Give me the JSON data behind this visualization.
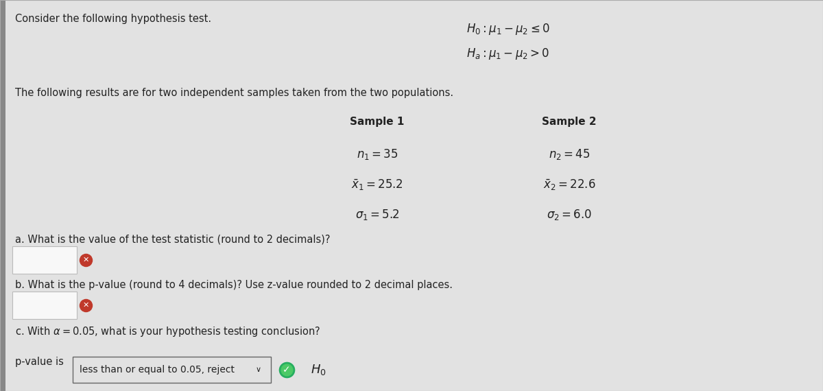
{
  "bg_color": "#d8d8d8",
  "panel_color": "#e2e2e2",
  "title": "Consider the following hypothesis test.",
  "subtitle": "The following results are for two independent samples taken from the two populations.",
  "H0": "$H_0: \\mu_1 - \\mu_2 \\leq 0$",
  "Ha": "$H_a: \\mu_1 - \\mu_2 > 0$",
  "sample1_header": "Sample 1",
  "sample2_header": "Sample 2",
  "sample1_n": "$n_1 = 35$",
  "sample2_n": "$n_2 = 45$",
  "sample1_xbar": "$\\bar{x}_1 = 25.2$",
  "sample2_xbar": "$\\bar{x}_2 = 22.6$",
  "sample1_sigma": "$\\sigma_1 = 5.2$",
  "sample2_sigma": "$\\sigma_2 = 6.0$",
  "question_a": "a. What is the value of the test statistic (round to 2 decimals)?",
  "question_b": "b. What is the p-value (round to 4 decimals)? Use z-value rounded to 2 decimal places.",
  "question_c": "c. With $\\alpha = 0.05$, what is your hypothesis testing conclusion?",
  "conclusion_label": "p-value is",
  "conclusion_dropdown": "less than or equal to 0.05, reject",
  "conclusion_end": "$H_0$",
  "check_icon_color": "#27ae60",
  "x_icon_color": "#c0392b",
  "border_color": "#888888",
  "input_box_color": "#f5f5f5",
  "text_color": "#222222",
  "left_bar_color": "#888888",
  "font_size_main": 10.5,
  "font_size_math": 12,
  "font_size_header": 11
}
